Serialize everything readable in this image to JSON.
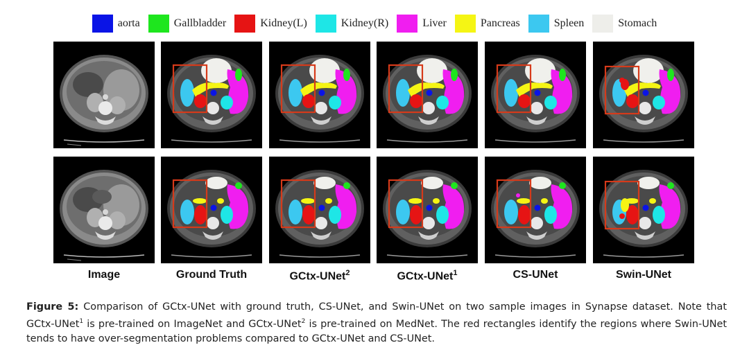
{
  "legend": [
    {
      "label": "aorta",
      "color": "#0a14e6"
    },
    {
      "label": "Gallbladder",
      "color": "#1ee61e"
    },
    {
      "label": "Kidney(L)",
      "color": "#e61414"
    },
    {
      "label": "Kidney(R)",
      "color": "#1ee6e6"
    },
    {
      "label": "Liver",
      "color": "#f01ef0"
    },
    {
      "label": "Pancreas",
      "color": "#f5f514"
    },
    {
      "label": "Spleen",
      "color": "#3cc8f0"
    },
    {
      "label": "Stomach",
      "color": "#f0f0ec"
    }
  ],
  "columns": [
    {
      "label": "Image",
      "sup": ""
    },
    {
      "label": "Ground Truth",
      "sup": ""
    },
    {
      "label": "GCtx-UNet",
      "sup": "2"
    },
    {
      "label": "GCtx-UNet",
      "sup": "1"
    },
    {
      "label": "CS-UNet",
      "sup": ""
    },
    {
      "label": "Swin-UNet",
      "sup": ""
    }
  ],
  "caption": {
    "fig_label": "Figure 5:",
    "text_1": " Comparison of GCtx-UNet with ground truth, CS-UNet, and Swin-UNet on two sample images in Synapse dataset. Note that GCtx-UNet",
    "sup_1": "1",
    "text_2": " is pre-trained on ImageNet and GCtx-UNet",
    "sup_2": "2",
    "text_3": " is pre-trained on MedNet. The red rectangles identify the regions where Swin-UNet tends to have over-segmentation problems compared to GCtx-UNet and CS-UNet."
  },
  "highlight_color": "#d63a1a"
}
